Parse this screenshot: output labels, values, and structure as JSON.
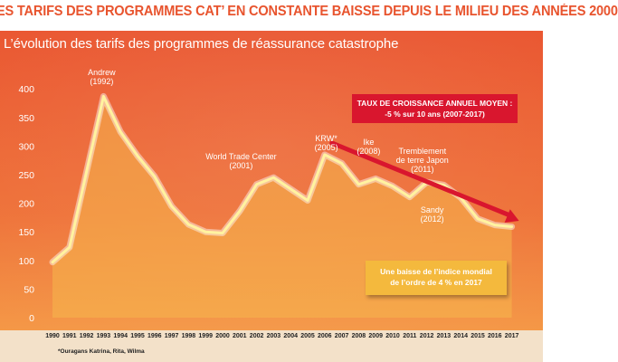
{
  "headline": "ES TARIFS DES PROGRAMMES CAT’ EN CONSTANTE BAISSE DEPUIS LE MILIEU DES ANNÉES 2000",
  "subtitle": "L’évolution des tarifs des programmes de réassurance catastrophe",
  "colors": {
    "headline": "#e8542e",
    "bg_top": "#e9532d",
    "bg_bottom": "#f6a24a",
    "line": "#fff3a0",
    "area": "#f6b74d",
    "trend_arrow": "#d9162e",
    "callout": "#f4b93d"
  },
  "chart_data": {
    "type": "area",
    "x": [
      "1990",
      "1991",
      "1992",
      "1993",
      "1994",
      "1995",
      "1996",
      "1997",
      "1998",
      "1999",
      "2000",
      "2001",
      "2002",
      "2003",
      "2004",
      "2005",
      "2006",
      "2007",
      "2008",
      "2009",
      "2010",
      "2011",
      "2012",
      "2013",
      "2014",
      "2015",
      "2016",
      "2017"
    ],
    "values": [
      97,
      123,
      255,
      387,
      325,
      283,
      247,
      195,
      163,
      150,
      148,
      186,
      233,
      245,
      225,
      205,
      285,
      270,
      233,
      243,
      230,
      211,
      237,
      232,
      210,
      173,
      162,
      159
    ],
    "ylim": [
      0,
      400
    ],
    "yticks": [
      0,
      50,
      100,
      150,
      200,
      250,
      300,
      350,
      400
    ],
    "title": "L’évolution des tarifs des programmes de réassurance catastrophe",
    "annotations": [
      {
        "name": "andrew",
        "lines": [
          "Andrew",
          "(1992)"
        ],
        "year": "1993"
      },
      {
        "name": "wtc",
        "lines": [
          "World Trade Center",
          "(2001)"
        ],
        "year": "2003"
      },
      {
        "name": "krw",
        "lines": [
          "KRW*",
          "(2005)"
        ],
        "year": "2007"
      },
      {
        "name": "ike",
        "lines": [
          "Ike",
          "(2008)"
        ],
        "year": "2008"
      },
      {
        "name": "japon",
        "lines": [
          "Tremblement",
          "de terre Japon",
          "(2011)"
        ],
        "year": "2011"
      },
      {
        "name": "sandy",
        "lines": [
          "Sandy",
          "(2012)"
        ],
        "year": "2012"
      }
    ],
    "trend": {
      "from": "2006",
      "to": "2017",
      "label_lines": [
        "TAUX DE CROISSANCE ANNUEL MOYEN :",
        "-5 % sur 10 ans (2007-2017)"
      ]
    },
    "callout_lines": [
      "Une baisse de l’indice mondial",
      "de l’ordre de 4 % en 2017"
    ],
    "footnote": "*Ouragans Katrina, Rita, Wilma"
  }
}
